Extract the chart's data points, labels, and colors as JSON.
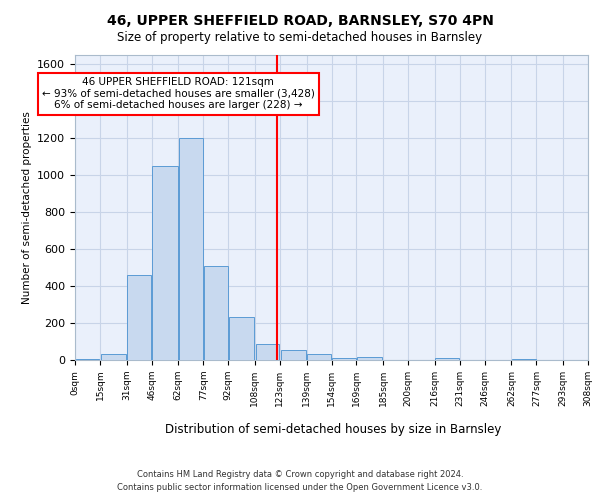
{
  "title": "46, UPPER SHEFFIELD ROAD, BARNSLEY, S70 4PN",
  "subtitle": "Size of property relative to semi-detached houses in Barnsley",
  "xlabel": "Distribution of semi-detached houses by size in Barnsley",
  "ylabel": "Number of semi-detached properties",
  "bin_labels": [
    "0sqm",
    "15sqm",
    "31sqm",
    "46sqm",
    "62sqm",
    "77sqm",
    "92sqm",
    "108sqm",
    "123sqm",
    "139sqm",
    "154sqm",
    "169sqm",
    "185sqm",
    "200sqm",
    "216sqm",
    "231sqm",
    "246sqm",
    "262sqm",
    "277sqm",
    "293sqm",
    "308sqm"
  ],
  "bin_edges": [
    0,
    15,
    31,
    46,
    62,
    77,
    92,
    108,
    123,
    139,
    154,
    169,
    185,
    200,
    216,
    231,
    246,
    262,
    277,
    293,
    308
  ],
  "bar_heights": [
    5,
    30,
    460,
    1050,
    1200,
    510,
    230,
    85,
    52,
    35,
    13,
    15,
    0,
    0,
    10,
    0,
    0,
    5,
    0,
    0,
    0
  ],
  "bar_color": "#c8d9ef",
  "bar_edge_color": "#5b9bd5",
  "vline_x": 121,
  "vline_color": "red",
  "annotation_text": "46 UPPER SHEFFIELD ROAD: 121sqm\n← 93% of semi-detached houses are smaller (3,428)\n6% of semi-detached houses are larger (228) →",
  "annotation_box_color": "white",
  "annotation_box_edge_color": "red",
  "ylim": [
    0,
    1650
  ],
  "yticks": [
    0,
    200,
    400,
    600,
    800,
    1000,
    1200,
    1400,
    1600
  ],
  "grid_color": "#c8d4e8",
  "background_color": "#eaf0fb",
  "footer_line1": "Contains HM Land Registry data © Crown copyright and database right 2024.",
  "footer_line2": "Contains public sector information licensed under the Open Government Licence v3.0."
}
